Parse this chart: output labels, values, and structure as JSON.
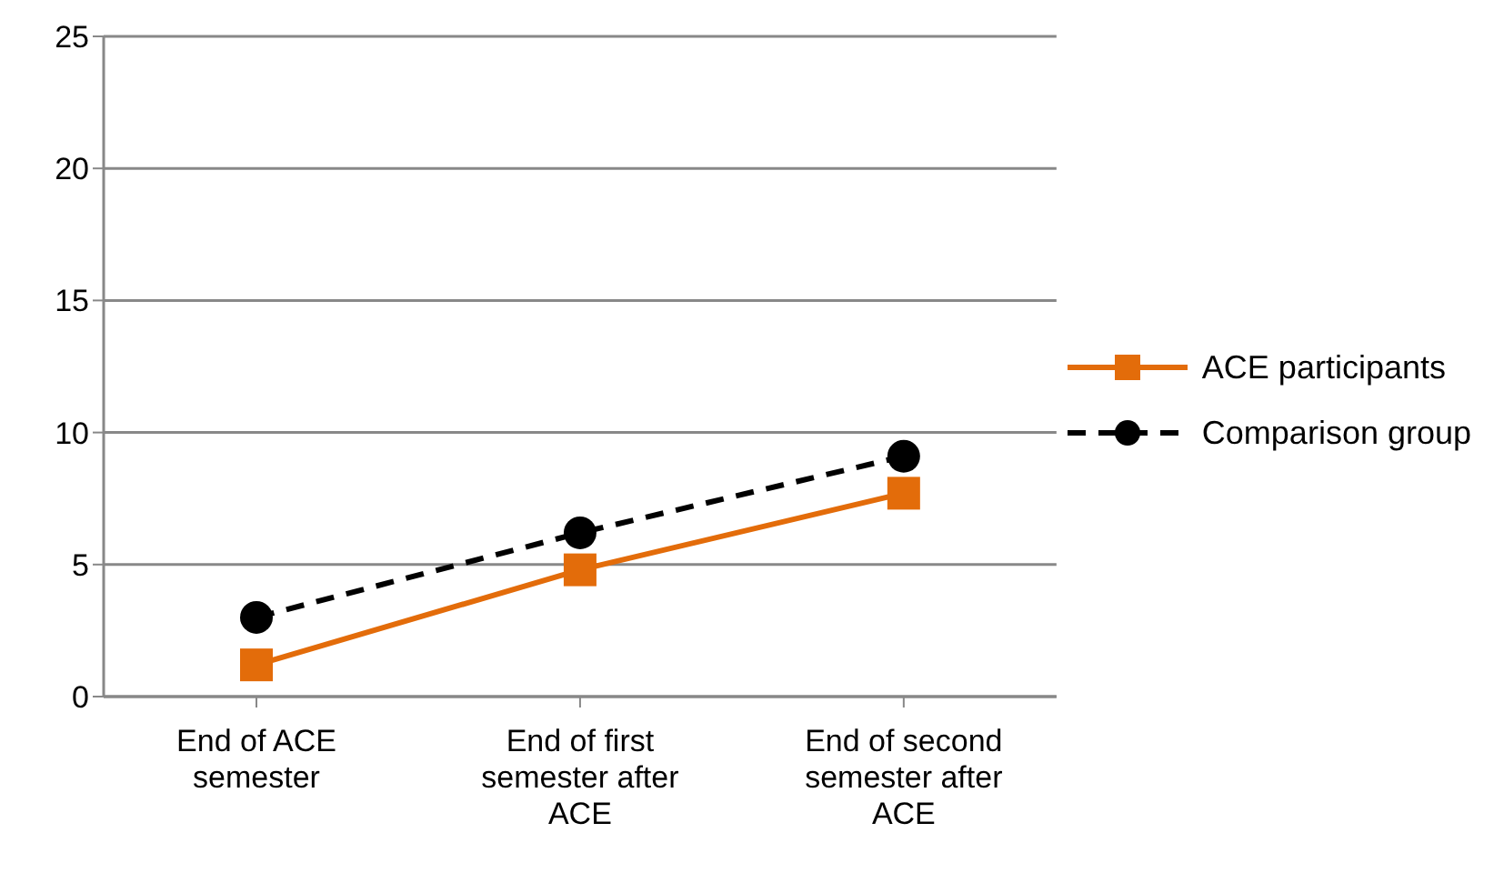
{
  "chart_data": {
    "type": "line",
    "categories": [
      "End of ACE semester",
      "End of first semester after ACE",
      "End of second semester after ACE"
    ],
    "series": [
      {
        "name": "ACE participants",
        "color": "#e36c0a",
        "values": [
          1.2,
          4.8,
          7.7
        ],
        "marker": "square",
        "line_style": "solid"
      },
      {
        "name": "Comparison group",
        "color": "#000000",
        "values": [
          3.0,
          6.2,
          9.1
        ],
        "marker": "circle",
        "line_style": "dashed"
      }
    ],
    "ylim": [
      0,
      25
    ],
    "yticks": [
      0,
      5,
      10,
      15,
      20,
      25
    ],
    "grid": "y",
    "legend": "right"
  }
}
